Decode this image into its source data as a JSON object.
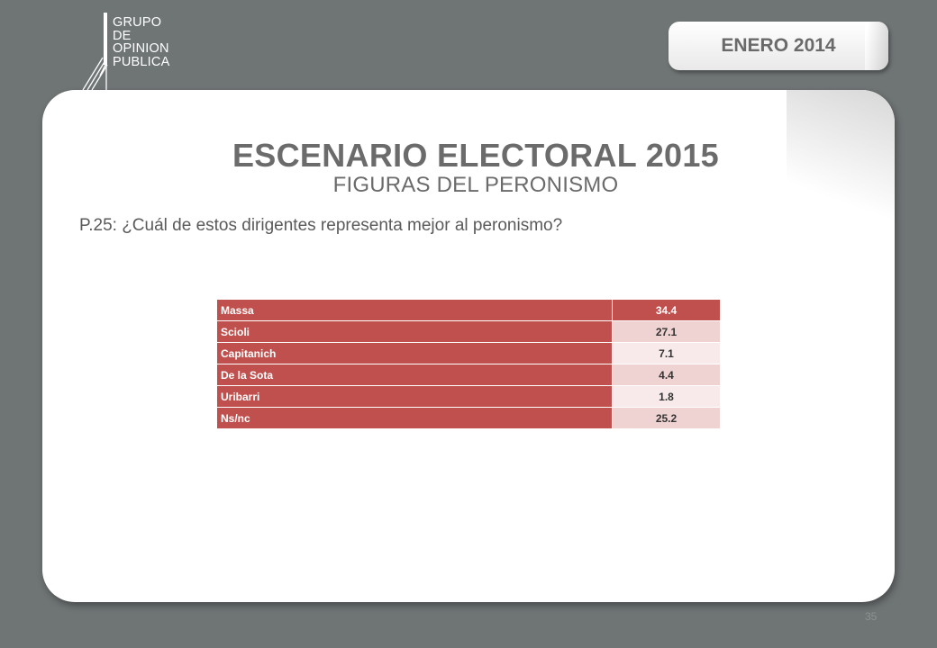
{
  "logo": {
    "lines": [
      "GRUPO",
      "DE",
      "OPINION",
      "PUBLICA"
    ]
  },
  "date_badge": "ENERO 2014",
  "title": "ESCENARIO ELECTORAL 2015",
  "subtitle": "FIGURAS DEL PERONISMO",
  "question": "P.25: ¿Cuál de estos dirigentes representa mejor al peronismo?",
  "table": {
    "rows": [
      {
        "name": "Massa",
        "value": "34.4"
      },
      {
        "name": "Scioli",
        "value": "27.1"
      },
      {
        "name": "Capitanich",
        "value": "7.1"
      },
      {
        "name": "De la Sota",
        "value": "4.4"
      },
      {
        "name": "Uribarri",
        "value": "1.8"
      },
      {
        "name": "Ns/nc",
        "value": "25.2"
      }
    ]
  },
  "page_number": "35",
  "colors": {
    "background": "#6f7475",
    "accent": "#c0504d",
    "text": "#6b6b6b"
  }
}
